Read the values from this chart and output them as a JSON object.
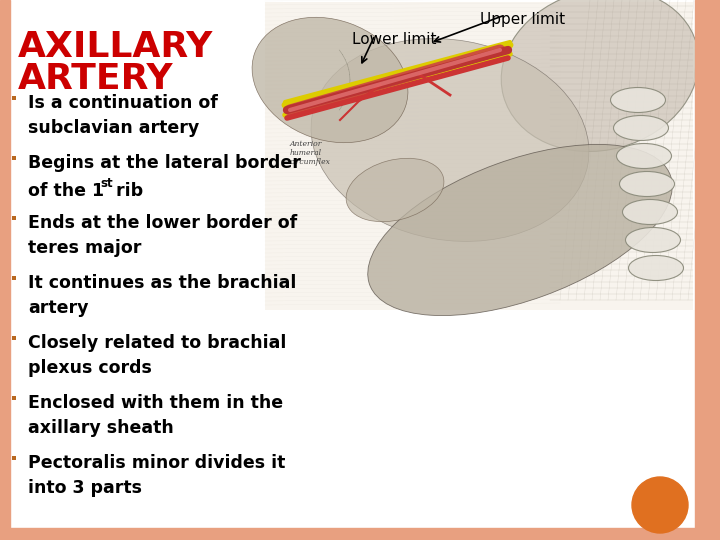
{
  "title_line1": "AXILLARY",
  "title_line2": "ARTERY",
  "title_color": "#CC0000",
  "title_fontsize": 26,
  "background_color": "#FFFFFF",
  "border_color": "#E8A080",
  "bullet_color": "#B86820",
  "text_color": "#000000",
  "bullet_points": [
    "Is a continuation of\nsubclavian artery",
    "Begins at the lateral border\nof the 1st rib",
    "Ends at the lower border of\nteres major",
    "It continues as the brachial\nartery",
    "Closely related to brachial\nplexus cords",
    "Enclosed with them in the\naxillary sheath",
    "Pectoralis minor divides it\ninto 3 parts"
  ],
  "bullet_fontsize": 12.5,
  "upper_limit_label": "Upper limit",
  "lower_limit_label": "Lower limit",
  "orange_circle_color": "#E07020",
  "right_border_color": "#E8A080",
  "left_border_color": "#E8A080"
}
